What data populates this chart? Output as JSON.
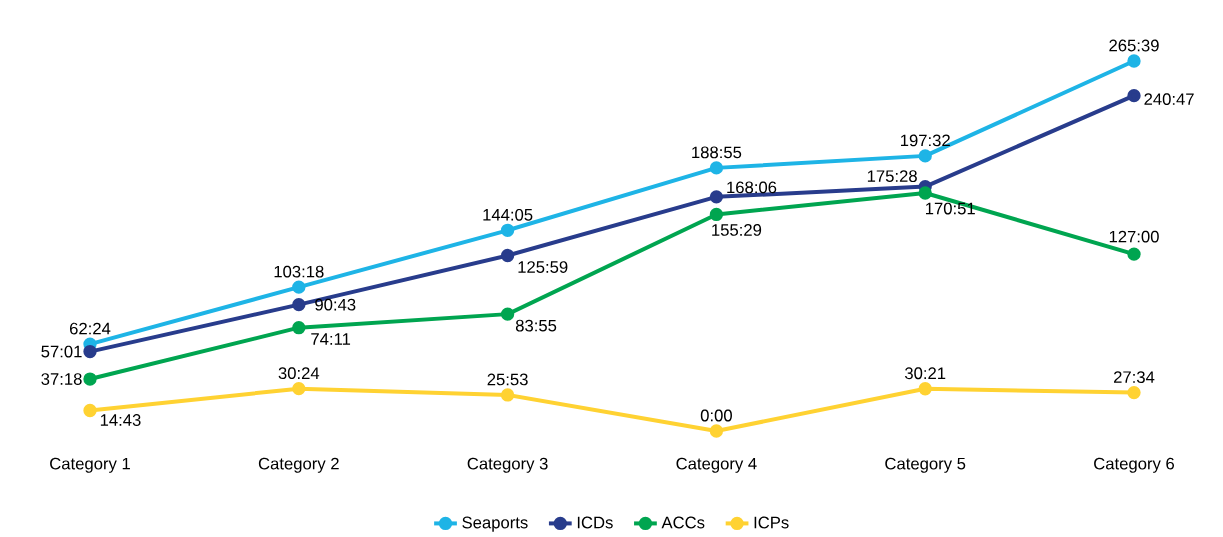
{
  "chart_data": {
    "type": "line",
    "categories": [
      "Category 1",
      "Category 2",
      "Category 3",
      "Category 4",
      "Category 5",
      "Category 6"
    ],
    "series": [
      {
        "name": "Seaports",
        "color": "#1eb4e6",
        "values": [
          62.4,
          103.3,
          144.083,
          188.917,
          197.533,
          265.65
        ],
        "value_labels": [
          "62:24",
          "103:18",
          "144:05",
          "188:55",
          "197:32",
          "265:39"
        ]
      },
      {
        "name": "ICDs",
        "color": "#283c8c",
        "values": [
          57.017,
          90.717,
          125.983,
          168.1,
          175.467,
          240.783
        ],
        "value_labels": [
          "57:01",
          "90:43",
          "125:59",
          "168:06",
          "175:28",
          "240:47"
        ]
      },
      {
        "name": "ACCs",
        "color": "#00a550",
        "values": [
          37.3,
          74.183,
          83.917,
          155.483,
          170.85,
          127.0
        ],
        "value_labels": [
          "37:18",
          "74:11",
          "83:55",
          "155:29",
          "170:51",
          "127:00"
        ]
      },
      {
        "name": "ICPs",
        "color": "#ffd232",
        "values": [
          14.717,
          30.4,
          25.883,
          0.0,
          30.35,
          27.567
        ],
        "value_labels": [
          "14:43",
          "30:24",
          "25:53",
          "0:00",
          "30:21",
          "27:34"
        ]
      }
    ],
    "legend": "bottom",
    "marker": "circle"
  }
}
